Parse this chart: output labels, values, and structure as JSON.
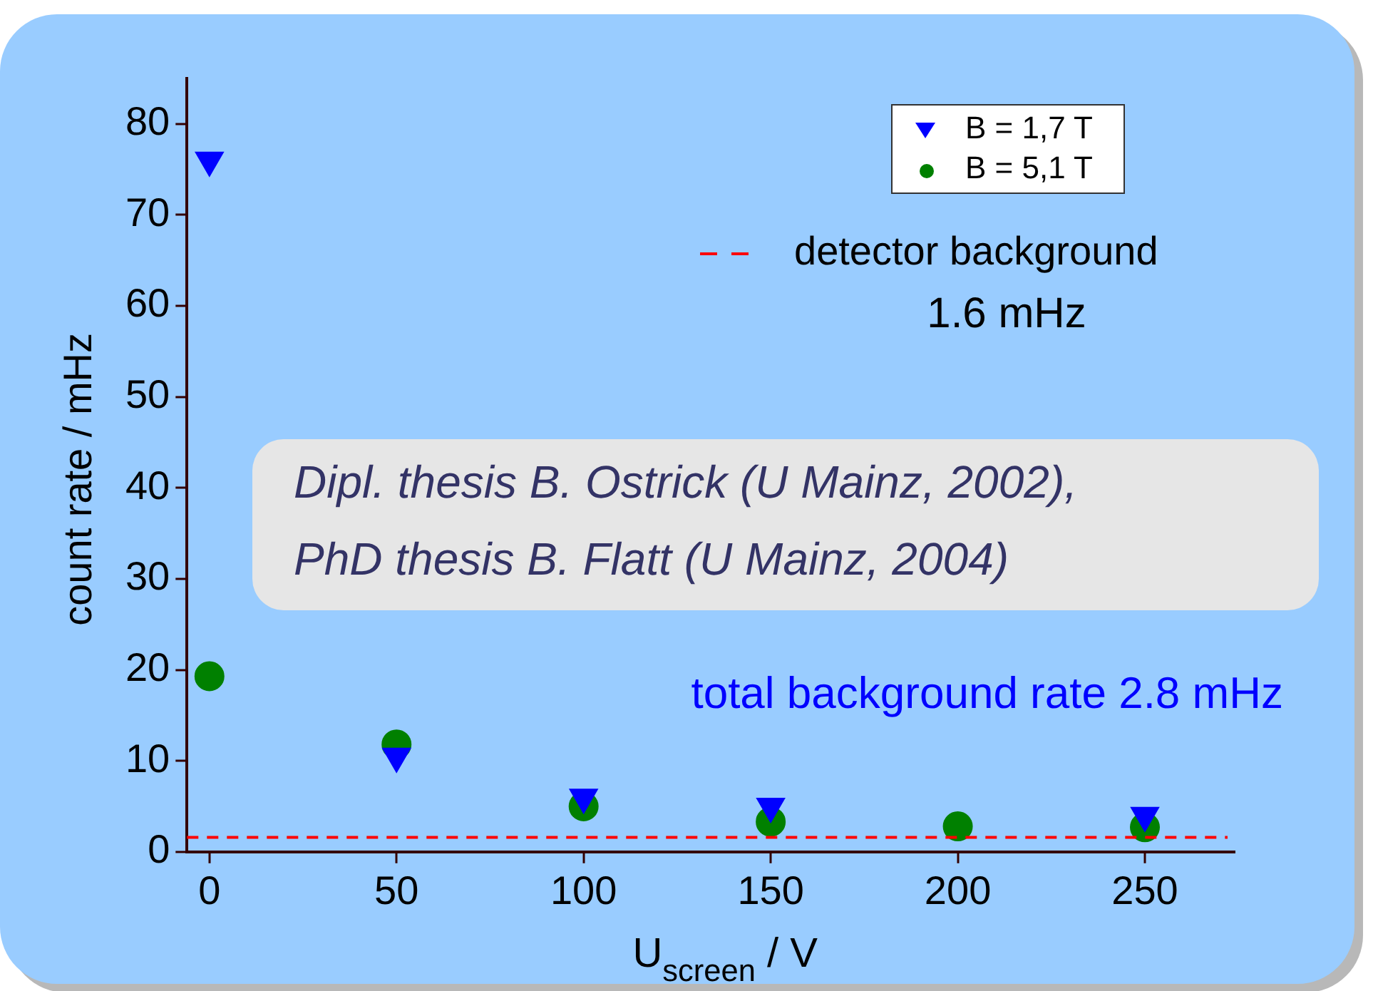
{
  "chart_data": {
    "type": "scatter",
    "xlabel": "U$_{screen}$ / V",
    "ylabel": "count rate / mHz",
    "x": [
      0,
      50,
      100,
      150,
      200,
      250
    ],
    "series": [
      {
        "name": "B = 1,7 T",
        "color": "#0000ff",
        "marker": "triangle",
        "values": [
          76,
          10.5,
          6,
          5,
          null,
          4
        ]
      },
      {
        "name": "B = 5,1 T",
        "color": "#008000",
        "marker": "circle",
        "values": [
          19.3,
          11.8,
          5,
          3.3,
          2.8,
          2.7
        ]
      }
    ],
    "xlim": [
      -6,
      274
    ],
    "xticks": [
      0,
      50,
      100,
      150,
      200,
      250
    ],
    "ylim": [
      0,
      85
    ],
    "yticks": [
      0,
      10,
      20,
      30,
      40,
      50,
      60,
      70,
      80
    ],
    "ref_lines": [
      {
        "axis": "y",
        "value": 1.6,
        "label": "detector background",
        "color": "#ff0000",
        "line_style": "dashed"
      }
    ],
    "annotations": [
      "1.6 mHz",
      "Dipl. thesis B. Ostrick (U Mainz, 2002),\nPhD thesis B. Flatt (U Mainz, 2004)",
      "total background rate 2.8 mHz"
    ],
    "grid": false,
    "legend": "top right"
  }
}
